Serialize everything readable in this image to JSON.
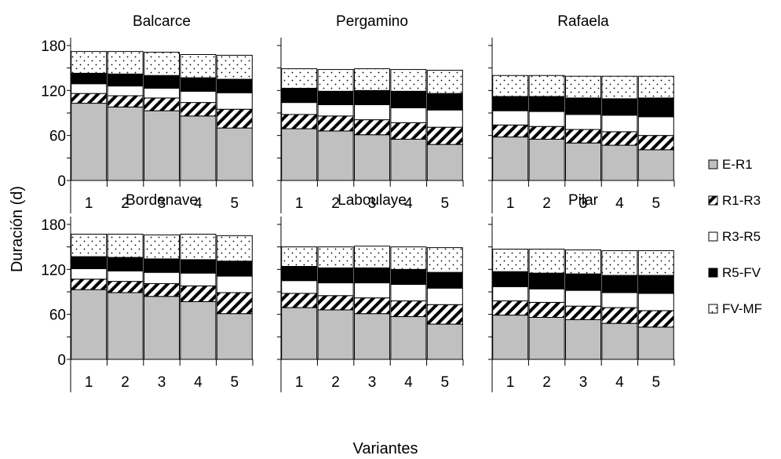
{
  "figure": {
    "ylabel": "Duración (d)",
    "xlabel": "Variantes"
  },
  "legend": {
    "position": "right",
    "items": [
      {
        "name": "E-R1",
        "pattern": "gray"
      },
      {
        "name": "R1-R3",
        "pattern": "hatch"
      },
      {
        "name": "R3-R5",
        "pattern": "white"
      },
      {
        "name": "R5-FV",
        "pattern": "black"
      },
      {
        "name": "FV-MF",
        "pattern": "dots"
      }
    ]
  },
  "colors": {
    "E-R1": "#c0c0c0",
    "R1-R3": "#000000",
    "R3-R5": "#ffffff",
    "R5-FV": "#000000",
    "FV-MF": "#ffffff",
    "edge": "#000000"
  },
  "chart_data": [
    {
      "type": "bar",
      "stacked": true,
      "title": "Balcarce",
      "categories": [
        "1",
        "2",
        "3",
        "4",
        "5"
      ],
      "ylim": [
        0,
        180
      ],
      "yticks": [
        0,
        60,
        120,
        180
      ],
      "grid": false,
      "series": [
        {
          "name": "E-R1",
          "values": [
            103,
            98,
            93,
            86,
            70
          ]
        },
        {
          "name": "R1-R3",
          "values": [
            13,
            15,
            17,
            18,
            25
          ]
        },
        {
          "name": "R3-R5",
          "values": [
            13,
            13,
            13,
            15,
            22
          ]
        },
        {
          "name": "R5-FV",
          "values": [
            14,
            16,
            17,
            18,
            18
          ]
        },
        {
          "name": "FV-MF",
          "values": [
            29,
            30,
            31,
            31,
            32
          ]
        }
      ]
    },
    {
      "type": "bar",
      "stacked": true,
      "title": "Pergamino",
      "categories": [
        "1",
        "2",
        "3",
        "4",
        "5"
      ],
      "ylim": [
        0,
        180
      ],
      "yticks": [
        0,
        60,
        120,
        180
      ],
      "grid": false,
      "series": [
        {
          "name": "E-R1",
          "values": [
            69,
            66,
            61,
            55,
            48
          ]
        },
        {
          "name": "R1-R3",
          "values": [
            19,
            20,
            20,
            22,
            23
          ]
        },
        {
          "name": "R3-R5",
          "values": [
            16,
            15,
            20,
            20,
            23
          ]
        },
        {
          "name": "R5-FV",
          "values": [
            19,
            18,
            19,
            22,
            22
          ]
        },
        {
          "name": "FV-MF",
          "values": [
            26,
            29,
            29,
            29,
            31
          ]
        }
      ]
    },
    {
      "type": "bar",
      "stacked": true,
      "title": "Rafaela",
      "categories": [
        "1",
        "2",
        "3",
        "4",
        "5"
      ],
      "ylim": [
        0,
        180
      ],
      "yticks": [
        0,
        60,
        120,
        180
      ],
      "grid": false,
      "series": [
        {
          "name": "E-R1",
          "values": [
            58,
            55,
            50,
            47,
            41
          ]
        },
        {
          "name": "R1-R3",
          "values": [
            16,
            17,
            18,
            18,
            19
          ]
        },
        {
          "name": "R3-R5",
          "values": [
            19,
            20,
            20,
            22,
            25
          ]
        },
        {
          "name": "R5-FV",
          "values": [
            19,
            20,
            22,
            22,
            25
          ]
        },
        {
          "name": "FV-MF",
          "values": [
            28,
            28,
            29,
            30,
            29
          ]
        }
      ]
    },
    {
      "type": "bar",
      "stacked": true,
      "title": "Bordenave",
      "categories": [
        "1",
        "2",
        "3",
        "4",
        "5"
      ],
      "ylim": [
        0,
        180
      ],
      "yticks": [
        0,
        60,
        120,
        180
      ],
      "grid": false,
      "series": [
        {
          "name": "E-R1",
          "values": [
            93,
            89,
            84,
            77,
            61
          ]
        },
        {
          "name": "R1-R3",
          "values": [
            14,
            15,
            17,
            21,
            28
          ]
        },
        {
          "name": "R3-R5",
          "values": [
            14,
            14,
            15,
            17,
            22
          ]
        },
        {
          "name": "R5-FV",
          "values": [
            16,
            18,
            18,
            18,
            20
          ]
        },
        {
          "name": "FV-MF",
          "values": [
            30,
            31,
            32,
            34,
            34
          ]
        }
      ]
    },
    {
      "type": "bar",
      "stacked": true,
      "title": "Laboulaye",
      "categories": [
        "1",
        "2",
        "3",
        "4",
        "5"
      ],
      "ylim": [
        0,
        180
      ],
      "yticks": [
        0,
        60,
        120,
        180
      ],
      "grid": false,
      "series": [
        {
          "name": "E-R1",
          "values": [
            69,
            66,
            61,
            57,
            47
          ]
        },
        {
          "name": "R1-R3",
          "values": [
            19,
            19,
            21,
            21,
            26
          ]
        },
        {
          "name": "R3-R5",
          "values": [
            17,
            17,
            20,
            22,
            22
          ]
        },
        {
          "name": "R5-FV",
          "values": [
            19,
            20,
            20,
            20,
            21
          ]
        },
        {
          "name": "FV-MF",
          "values": [
            26,
            28,
            29,
            30,
            33
          ]
        }
      ]
    },
    {
      "type": "bar",
      "stacked": true,
      "title": "Pilar",
      "categories": [
        "1",
        "2",
        "3",
        "4",
        "5"
      ],
      "ylim": [
        0,
        180
      ],
      "yticks": [
        0,
        60,
        120,
        180
      ],
      "grid": false,
      "series": [
        {
          "name": "E-R1",
          "values": [
            59,
            56,
            53,
            48,
            43
          ]
        },
        {
          "name": "R1-R3",
          "values": [
            19,
            20,
            18,
            21,
            22
          ]
        },
        {
          "name": "R3-R5",
          "values": [
            19,
            18,
            21,
            20,
            23
          ]
        },
        {
          "name": "R5-FV",
          "values": [
            20,
            21,
            22,
            23,
            24
          ]
        },
        {
          "name": "FV-MF",
          "values": [
            30,
            32,
            32,
            33,
            33
          ]
        }
      ]
    }
  ]
}
